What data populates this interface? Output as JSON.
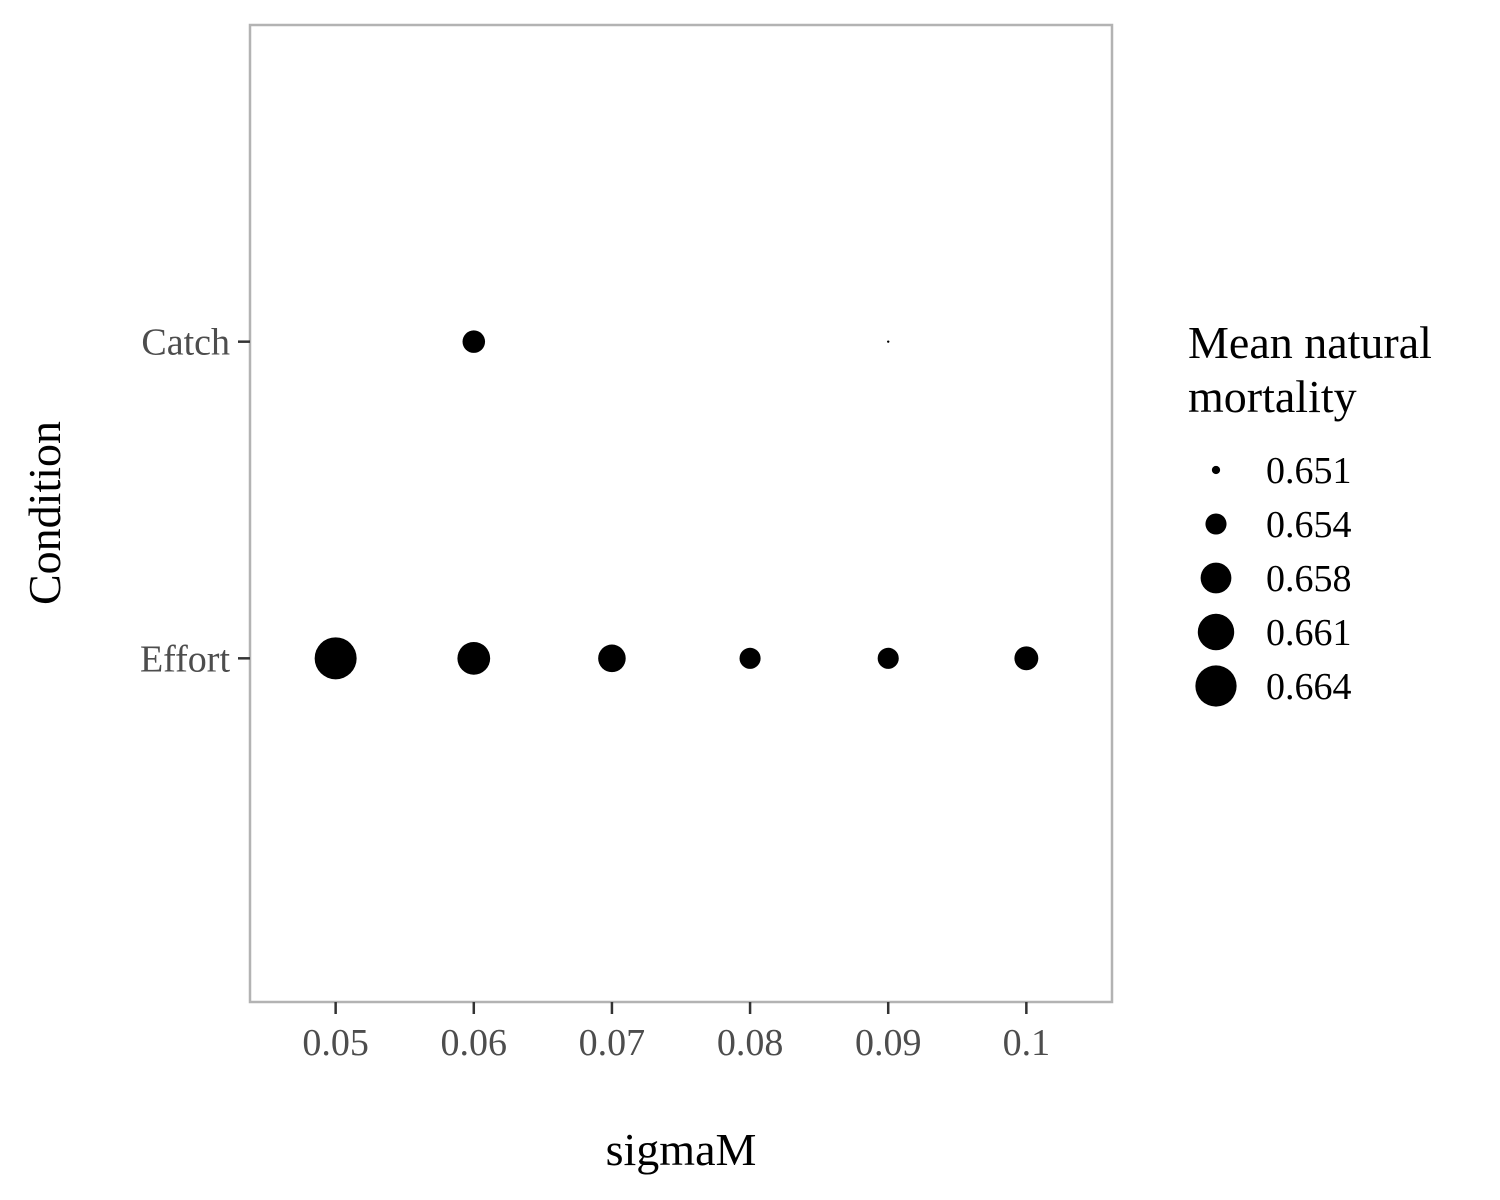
{
  "chart_data": {
    "type": "scatter",
    "xlabel": "sigmaM",
    "ylabel": "Condition",
    "x_ticks": [
      "0.05",
      "0.06",
      "0.07",
      "0.08",
      "0.09",
      "0.1"
    ],
    "x_tick_values": [
      0.05,
      0.06,
      0.07,
      0.08,
      0.09,
      0.1
    ],
    "xlim": [
      0.0438,
      0.1062
    ],
    "y_categories": [
      "Catch",
      "Effort"
    ],
    "size_legend": {
      "title_lines": [
        "Mean natural",
        "mortality"
      ],
      "labels": [
        "0.651",
        "0.654",
        "0.658",
        "0.661",
        "0.664"
      ],
      "values": [
        0.651,
        0.654,
        0.658,
        0.661,
        0.664
      ],
      "placement": "right"
    },
    "size_range": [
      0.6505,
      0.6645
    ],
    "points": [
      {
        "condition": "Catch",
        "x": 0.06,
        "size_value": 0.6545
      },
      {
        "condition": "Catch",
        "x": 0.09,
        "size_value": 0.6505
      },
      {
        "condition": "Effort",
        "x": 0.05,
        "size_value": 0.6645
      },
      {
        "condition": "Effort",
        "x": 0.06,
        "size_value": 0.659
      },
      {
        "condition": "Effort",
        "x": 0.07,
        "size_value": 0.6565
      },
      {
        "condition": "Effort",
        "x": 0.08,
        "size_value": 0.654
      },
      {
        "condition": "Effort",
        "x": 0.09,
        "size_value": 0.654
      },
      {
        "condition": "Effort",
        "x": 0.1,
        "size_value": 0.655
      }
    ],
    "grid": false,
    "point_color": "#000000",
    "panel_border_color": "#b3b3b3",
    "tick_label_color": "#4d4d4d"
  }
}
